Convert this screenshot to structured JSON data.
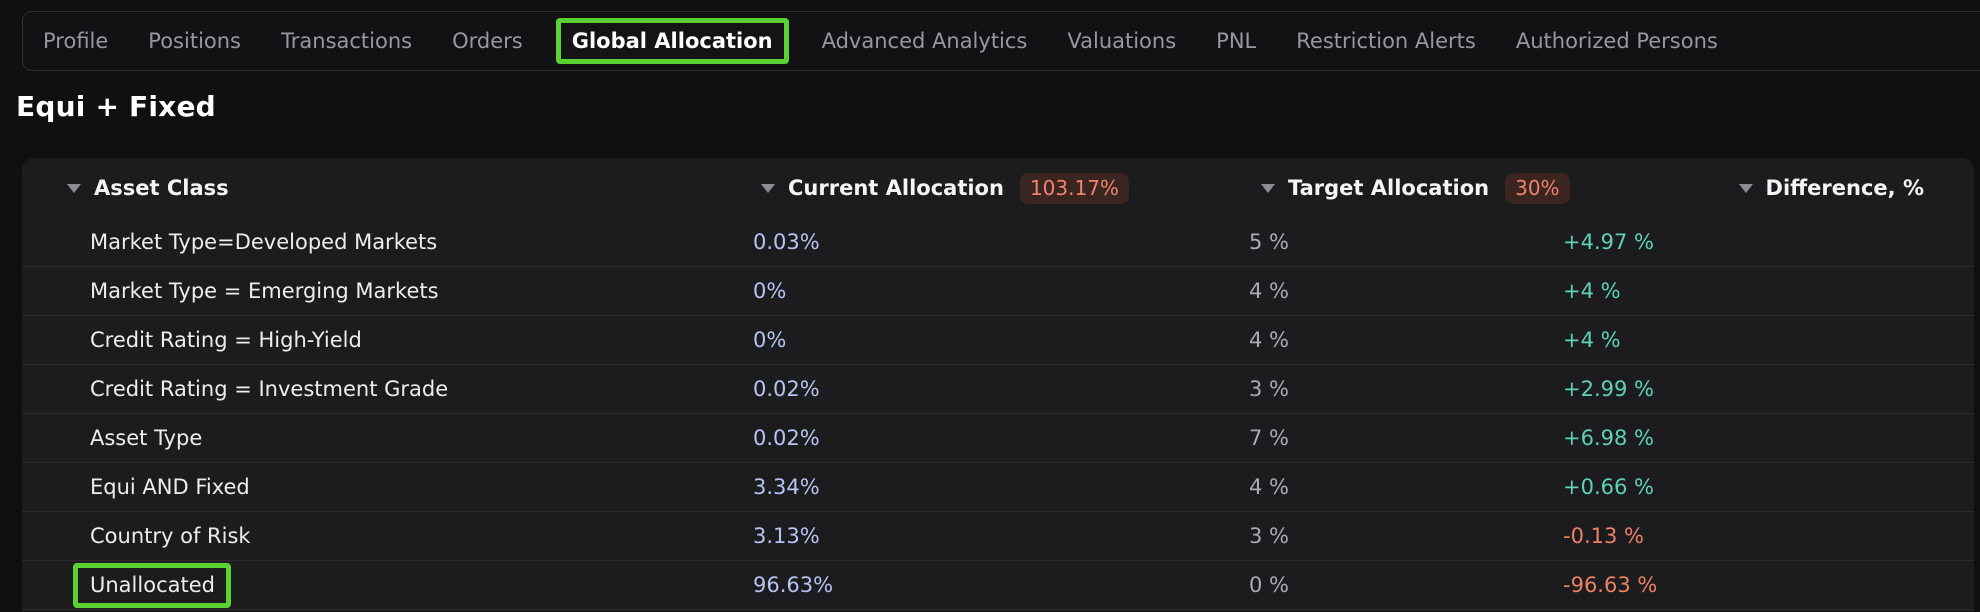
{
  "nav": {
    "tabs": [
      {
        "label": "Profile",
        "active": false
      },
      {
        "label": "Positions",
        "active": false
      },
      {
        "label": "Transactions",
        "active": false
      },
      {
        "label": "Orders",
        "active": false
      },
      {
        "label": "Global Allocation",
        "active": true
      },
      {
        "label": "Advanced Analytics",
        "active": false
      },
      {
        "label": "Valuations",
        "active": false
      },
      {
        "label": "PNL",
        "active": false
      },
      {
        "label": "Restriction Alerts",
        "active": false
      },
      {
        "label": "Authorized Persons",
        "active": false
      }
    ]
  },
  "page": {
    "title": "Equi + Fixed"
  },
  "table": {
    "columns": [
      {
        "label": "Asset Class"
      },
      {
        "label": "Current Allocation",
        "badge": "103.17%"
      },
      {
        "label": "Target Allocation",
        "badge": "30%"
      },
      {
        "label": "Difference, %"
      }
    ],
    "rows": [
      {
        "asset_class": "Market Type=Developed Markets",
        "current": "0.03%",
        "target": "5 %",
        "difference": "+4.97 %",
        "trend": "positive",
        "highlighted": false
      },
      {
        "asset_class": "Market Type = Emerging Markets",
        "current": "0%",
        "target": "4 %",
        "difference": "+4 %",
        "trend": "positive",
        "highlighted": false
      },
      {
        "asset_class": "Credit Rating = High-Yield",
        "current": "0%",
        "target": "4 %",
        "difference": "+4 %",
        "trend": "positive",
        "highlighted": false
      },
      {
        "asset_class": "Credit Rating = Investment Grade",
        "current": "0.02%",
        "target": "3 %",
        "difference": "+2.99 %",
        "trend": "positive",
        "highlighted": false
      },
      {
        "asset_class": "Asset Type",
        "current": "0.02%",
        "target": "7 %",
        "difference": "+6.98 %",
        "trend": "positive",
        "highlighted": false
      },
      {
        "asset_class": "Equi AND Fixed",
        "current": "3.34%",
        "target": "4 %",
        "difference": "+0.66 %",
        "trend": "positive",
        "highlighted": false
      },
      {
        "asset_class": "Country of Risk",
        "current": "3.13%",
        "target": "3 %",
        "difference": "-0.13 %",
        "trend": "negative",
        "highlighted": false
      },
      {
        "asset_class": "Unallocated",
        "current": "96.63%",
        "target": "0 %",
        "difference": "-96.63 %",
        "trend": "negative",
        "highlighted": true
      }
    ]
  },
  "colors": {
    "annotation_green": "#5bd233",
    "badge_bg": "#3a2520",
    "badge_text": "#f1836d",
    "current_value": "#b7c3f2",
    "positive": "#5ed3b1",
    "negative": "#ee8064",
    "table_bg": "#1c1c1f"
  }
}
